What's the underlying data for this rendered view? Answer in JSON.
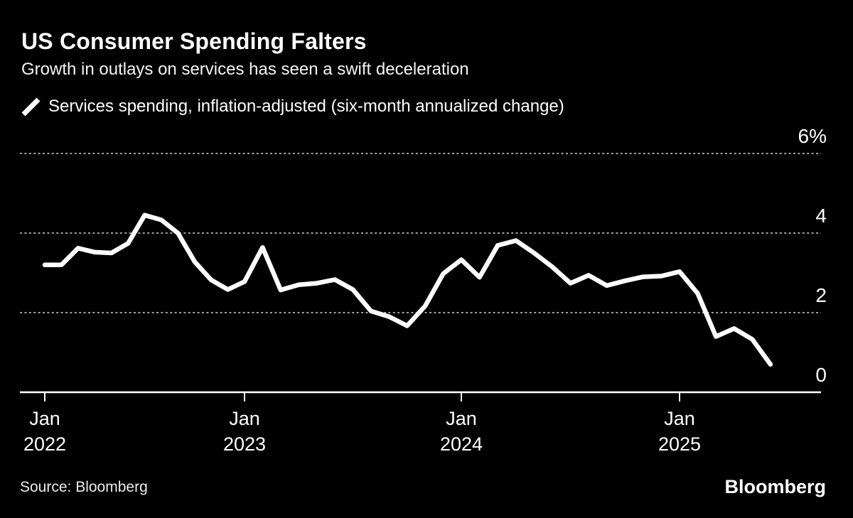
{
  "header": {
    "title": "US Consumer Spending Falters",
    "subtitle": "Growth in outlays on services has seen a swift deceleration"
  },
  "legend": {
    "marker": "diagonal-line-stroke",
    "series_label": "Services spending, inflation-adjusted (six-month annualized change)"
  },
  "footer": {
    "source": "Source: Bloomberg",
    "brand": "Bloomberg"
  },
  "colors": {
    "background": "#000000",
    "text": "#ffffff",
    "line": "#ffffff",
    "grid": "#9e9e9e",
    "axis": "#ffffff"
  },
  "chart_data": {
    "type": "line",
    "title": "US Consumer Spending Falters",
    "subtitle": "Growth in outlays on services has seen a swift deceleration",
    "unit": "%",
    "frequency": "monthly",
    "grid": "horizontal-dotted",
    "legend_position": "top-left",
    "ylim": [
      0,
      6.6
    ],
    "y_ticks": [
      {
        "value": 0,
        "label": "0"
      },
      {
        "value": 2,
        "label": "2"
      },
      {
        "value": 4,
        "label": "4"
      },
      {
        "value": 6,
        "label": "6%"
      }
    ],
    "x_ticks": [
      {
        "month_index": 0,
        "line1": "Jan",
        "line2": "2022"
      },
      {
        "month_index": 12,
        "line1": "Jan",
        "line2": "2023"
      },
      {
        "month_index": 24,
        "line1": "Jan",
        "line2": "2024"
      },
      {
        "month_index": 36,
        "line1": "Jan",
        "line2": "2025"
      }
    ],
    "series": [
      {
        "name": "Services spending, inflation-adjusted (six-month annualized change)",
        "color": "#ffffff",
        "x": [
          "2022-01",
          "2022-02",
          "2022-03",
          "2022-04",
          "2022-05",
          "2022-06",
          "2022-07",
          "2022-08",
          "2022-09",
          "2022-10",
          "2022-11",
          "2022-12",
          "2023-01",
          "2023-02",
          "2023-03",
          "2023-04",
          "2023-05",
          "2023-06",
          "2023-07",
          "2023-08",
          "2023-09",
          "2023-10",
          "2023-11",
          "2023-12",
          "2024-01",
          "2024-02",
          "2024-03",
          "2024-04",
          "2024-05",
          "2024-06",
          "2024-07",
          "2024-08",
          "2024-09",
          "2024-10",
          "2024-11",
          "2024-12",
          "2025-01",
          "2025-02",
          "2025-03",
          "2025-04",
          "2025-05",
          "2025-06"
        ],
        "values": [
          3.2,
          3.2,
          3.62,
          3.52,
          3.5,
          3.74,
          4.45,
          4.33,
          4.0,
          3.28,
          2.82,
          2.58,
          2.78,
          3.64,
          2.57,
          2.7,
          2.74,
          2.83,
          2.58,
          2.04,
          1.9,
          1.67,
          2.17,
          2.98,
          3.33,
          2.89,
          3.69,
          3.81,
          3.5,
          3.15,
          2.74,
          2.94,
          2.68,
          2.8,
          2.9,
          2.92,
          3.03,
          2.48,
          1.4,
          1.6,
          1.33,
          0.7
        ]
      }
    ]
  }
}
